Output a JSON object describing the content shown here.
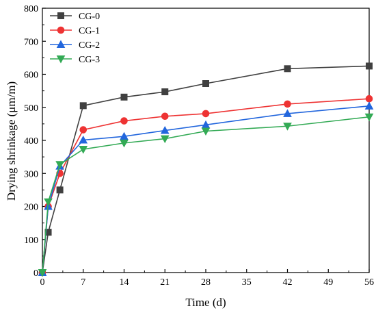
{
  "chart_data": {
    "type": "line",
    "title": "",
    "xlabel": "Time (d)",
    "ylabel": "Drying shrinkage (μm/m)",
    "xlim": [
      0,
      56
    ],
    "ylim": [
      0,
      800
    ],
    "xticks": [
      0,
      7,
      14,
      21,
      28,
      35,
      42,
      49,
      56
    ],
    "yticks": [
      0,
      100,
      200,
      300,
      400,
      500,
      600,
      700,
      800
    ],
    "grid": false,
    "legend_position": "top-left",
    "series": [
      {
        "name": "CG-0",
        "color": "#404040",
        "marker": "square",
        "x": [
          0,
          1,
          3,
          7,
          14,
          21,
          28,
          42,
          56
        ],
        "y": [
          0,
          122,
          250,
          505,
          531,
          547,
          572,
          617,
          625
        ]
      },
      {
        "name": "CG-1",
        "color": "#ee3333",
        "marker": "circle",
        "x": [
          0,
          1,
          3,
          7,
          14,
          21,
          28,
          42,
          56
        ],
        "y": [
          0,
          200,
          300,
          432,
          459,
          473,
          481,
          510,
          526
        ]
      },
      {
        "name": "CG-2",
        "color": "#2266dd",
        "marker": "triangle-up",
        "x": [
          0,
          1,
          3,
          7,
          14,
          21,
          28,
          42,
          56
        ],
        "y": [
          0,
          200,
          322,
          401,
          412,
          430,
          447,
          481,
          504
        ]
      },
      {
        "name": "CG-3",
        "color": "#33aa55",
        "marker": "triangle-down",
        "x": [
          0,
          1,
          3,
          7,
          14,
          21,
          28,
          42,
          56
        ],
        "y": [
          0,
          214,
          327,
          373,
          392,
          405,
          428,
          443,
          471
        ]
      }
    ]
  }
}
